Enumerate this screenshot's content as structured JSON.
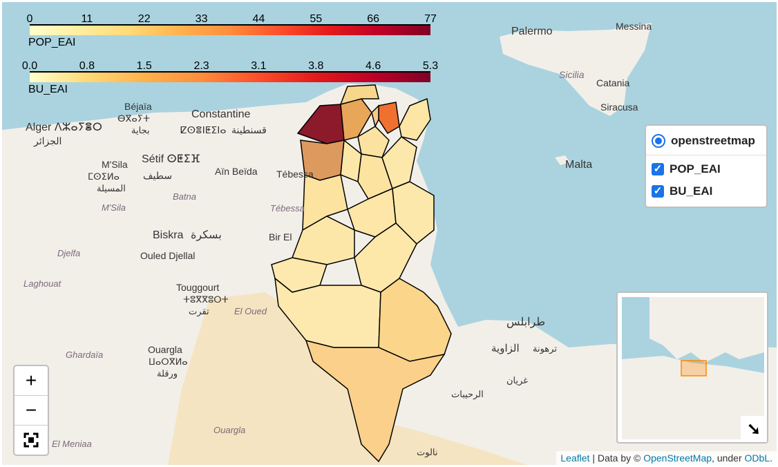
{
  "legend_pop": {
    "ticks": [
      "0",
      "11",
      "22",
      "33",
      "44",
      "55",
      "66",
      "77"
    ],
    "title": "POP_EAI"
  },
  "legend_bu": {
    "ticks": [
      "0.0",
      "0.8",
      "1.5",
      "2.3",
      "3.1",
      "3.8",
      "4.6",
      "5.3"
    ],
    "title": "BU_EAI"
  },
  "layers": {
    "base": "openstreetmap",
    "overlays": [
      "POP_EAI",
      "BU_EAI"
    ]
  },
  "zoom": {
    "in": "+",
    "out": "−"
  },
  "attribution": {
    "leaflet": "Leaflet",
    "sep": " | Data by © ",
    "osm": "OpenStreetMap",
    "mid": ", under ",
    "odbl": "ODbL",
    "end": "."
  },
  "places": {
    "palermo": "Palermo",
    "messina": "Messina",
    "sicilia": "Sicilia",
    "catania": "Catania",
    "siracusa": "Siracusa",
    "malta": "Malta",
    "bejaia": "Béjaïa",
    "bejaia_tif": "ⴱⴳⴰⵢⵜ",
    "bejaia_ar": "بجاية",
    "constantine": "Constantine",
    "constantine_tif": "ⵇⵙⴻⵏⵟⵉⵏⴰ",
    "constantine_ar": "قسنطينة",
    "alger": "Alger ⴷⵣⴰⵢⴻⵔ",
    "alger_ar": "الجزائر",
    "msila": "M'Sila",
    "msila_tif": "ⵎⵙⵉⵍⴰ",
    "msila_ar": "المسيلة",
    "msila_it": "M'Sila",
    "setif": "Sétif ⵙⵟⵉⴼ",
    "setif_ar": "سطيف",
    "batna": "Batna",
    "ain_beida": "Aïn Beïda",
    "tebessa": "Tébessa",
    "tebessa_it": "Tébessa",
    "biskra": "Biskra",
    "biskra_ar": "بسكرة",
    "bir_el": "Bir El",
    "djelfa": "Djelfa",
    "ouled_djellal": "Ouled Djellal",
    "laghouat": "Laghouat",
    "touggourt": "Touggourt",
    "touggourt_tif": "ⵜⵓⴳⴳⵓⵔⵜ",
    "touggourt_ar": "تقرت",
    "el_oued": "El Oued",
    "ghardaia": "Ghardaïa",
    "ouargla": "Ouargla",
    "ouargla_tif": "ⵡⴰⵔⴳⵍⴰ",
    "ouargla_ar": "ورقلة",
    "ouargla_it": "Ouargla",
    "el_meniaa": "El Meniaa",
    "tripoli_ar": "طرابلس",
    "zawiya_ar": "الزاوية",
    "tarhuna_ar": "ترهونة",
    "gharyan_ar": "غريان",
    "rohaibat_ar": "الرحيبات",
    "nalut_ar": "نالوت"
  },
  "chart_data": {
    "type": "choropleth",
    "layers": [
      {
        "name": "POP_EAI",
        "range": [
          0,
          77
        ]
      },
      {
        "name": "BU_EAI",
        "range": [
          0.0,
          5.3
        ]
      }
    ]
  },
  "colors": {
    "water": "#aad3df",
    "land": "#f2efe9",
    "desert": "#f4e4c1",
    "accent": "#1a73e8"
  }
}
